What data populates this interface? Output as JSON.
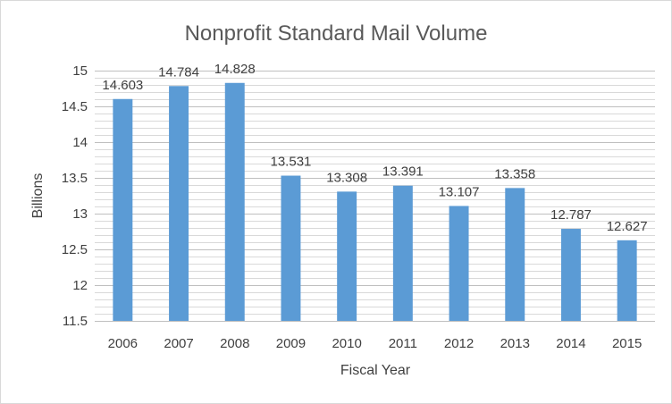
{
  "chart_data": {
    "type": "bar",
    "title": "Nonprofit Standard Mail Volume",
    "xlabel": "Fiscal Year",
    "ylabel": "Billions",
    "categories": [
      "2006",
      "2007",
      "2008",
      "2009",
      "2010",
      "2011",
      "2012",
      "2013",
      "2014",
      "2015"
    ],
    "values": [
      14.603,
      14.784,
      14.828,
      13.531,
      13.308,
      13.391,
      13.107,
      13.358,
      12.787,
      12.627
    ],
    "data_labels": [
      "14.603",
      "14.784",
      "14.828",
      "13.531",
      "13.308",
      "13.391",
      "13.107",
      "13.358",
      "12.787",
      "12.627"
    ],
    "ylim": [
      11.5,
      15
    ],
    "yticks": [
      "11.5",
      "12",
      "12.5",
      "13",
      "13.5",
      "14",
      "14.5",
      "15"
    ],
    "grid": true,
    "legend": "none",
    "colors": {
      "bar": "#5b9bd5",
      "gridline": "#d9d9d9",
      "major_gridline": "#bfbfbf",
      "text": "#404040",
      "title": "#595959"
    }
  }
}
